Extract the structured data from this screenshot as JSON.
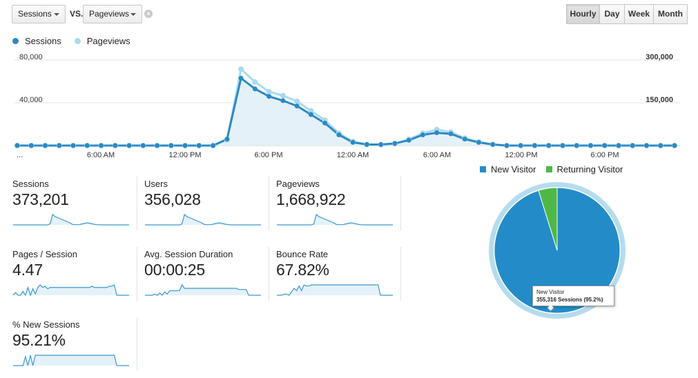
{
  "controls": {
    "primary_metric": "Sessions",
    "vs_label": "VS.",
    "secondary_metric": "Pageviews",
    "clear_glyph": "×",
    "periods": [
      "Hourly",
      "Day",
      "Week",
      "Month"
    ],
    "active_period": "Hourly"
  },
  "colors": {
    "sessions": "#2b8ac4",
    "pageviews": "#a8daf0",
    "area": "#e4f1f8",
    "new_visitor": "#238cc8",
    "returning_visitor": "#4db847"
  },
  "chart_data": [
    {
      "type": "line",
      "series": [
        {
          "name": "Sessions",
          "axis": "left",
          "values": [
            0,
            0,
            0,
            0,
            0,
            0,
            0,
            0,
            0,
            0,
            0,
            0,
            0,
            0,
            0,
            6000,
            63000,
            53000,
            46000,
            42000,
            37000,
            29000,
            21000,
            10000,
            3000,
            1000,
            1000,
            2000,
            5000,
            10000,
            12000,
            11000,
            6000,
            3000,
            1000,
            0,
            0,
            0,
            0,
            0,
            0,
            0,
            0,
            0,
            0,
            0,
            0,
            0
          ]
        },
        {
          "name": "Pageviews",
          "axis": "right",
          "values": [
            0,
            0,
            0,
            0,
            0,
            0,
            0,
            0,
            0,
            0,
            0,
            0,
            0,
            0,
            0,
            20000,
            268000,
            223000,
            189000,
            175000,
            155000,
            122000,
            89000,
            43000,
            14000,
            4000,
            3000,
            6000,
            22000,
            43000,
            56000,
            47000,
            26000,
            12000,
            4000,
            0,
            0,
            0,
            0,
            0,
            0,
            0,
            0,
            0,
            0,
            0,
            0,
            0
          ]
        }
      ],
      "x_tick_labels": [
        "...",
        "6:00 AM",
        "12:00 PM",
        "6:00 PM",
        "12:00 AM",
        "6:00 AM",
        "12:00 PM",
        "6:00 PM"
      ],
      "y_left_ticks": [
        "80,000",
        "40,000"
      ],
      "y_right_ticks": [
        "300,000",
        "150,000"
      ],
      "ylim_left": [
        0,
        80000
      ],
      "ylim_right": [
        0,
        300000
      ]
    },
    {
      "type": "pie",
      "legend": [
        "New Visitor",
        "Returning Visitor"
      ],
      "slices": [
        {
          "label": "New Visitor",
          "value": 95.2
        },
        {
          "label": "Returning Visitor",
          "value": 4.8
        }
      ],
      "tooltip": {
        "title": "New Visitor",
        "value": "355,316 Sessions (95.2%)"
      }
    }
  ],
  "metrics": [
    {
      "label": "Sessions",
      "value": "373,201",
      "spark": [
        0,
        0,
        0,
        0,
        0,
        0,
        0,
        0,
        0,
        0,
        0,
        0,
        0,
        0,
        0,
        1,
        10,
        8,
        7,
        6,
        5,
        4,
        3,
        2,
        0.5,
        0.2,
        0.2,
        0.3,
        1,
        1.5,
        2,
        1.6,
        1,
        0.5,
        0.2,
        0,
        0,
        0,
        0,
        0,
        0,
        0,
        0,
        0,
        0,
        0,
        0,
        0
      ]
    },
    {
      "label": "Users",
      "value": "356,028",
      "spark": [
        0,
        0,
        0,
        0,
        0,
        0,
        0,
        0,
        0,
        0,
        0,
        0,
        0,
        0,
        0,
        1,
        10,
        8,
        7,
        6,
        5,
        4,
        3,
        2,
        0.5,
        0.2,
        0.2,
        0.3,
        1,
        1.5,
        2,
        1.6,
        1,
        0.5,
        0.2,
        0,
        0,
        0,
        0,
        0,
        0,
        0,
        0,
        0,
        0,
        0,
        0,
        0
      ]
    },
    {
      "label": "Pageviews",
      "value": "1,668,922",
      "spark": [
        0,
        0,
        0,
        0,
        0,
        0,
        0,
        0,
        0,
        0,
        0,
        0,
        0,
        0,
        0,
        1,
        10,
        8,
        7,
        6,
        5,
        4,
        3,
        2,
        0.5,
        0.2,
        0.2,
        0.3,
        1,
        1.5,
        2,
        1.6,
        1,
        0.5,
        0.2,
        0,
        0,
        0,
        0,
        0,
        0,
        0,
        0,
        0,
        0,
        0,
        0,
        0
      ]
    },
    {
      "label": "Pages / Session",
      "value": "4.47",
      "spark": [
        0,
        2,
        0,
        0,
        3,
        0,
        6,
        0,
        5,
        1,
        6,
        8,
        6,
        7,
        5,
        6,
        6,
        6,
        6,
        6,
        6,
        6,
        6,
        6,
        6,
        6,
        6,
        6,
        6,
        6,
        6,
        6,
        7,
        6,
        6,
        6,
        6,
        6,
        6,
        7,
        7,
        8,
        0,
        0,
        0,
        0,
        0,
        0
      ]
    },
    {
      "label": "Avg. Session Duration",
      "value": "00:00:25",
      "spark": [
        0,
        0,
        0,
        0,
        1,
        0,
        2,
        0,
        3,
        1,
        4,
        4,
        4,
        4,
        4,
        9,
        6,
        6,
        6,
        6,
        6,
        6,
        6,
        6,
        6,
        6,
        6,
        6,
        6,
        6,
        6,
        6,
        6,
        6,
        6,
        6,
        6,
        6,
        5,
        5,
        5,
        5,
        0,
        0,
        0,
        0,
        0,
        0
      ]
    },
    {
      "label": "Bounce Rate",
      "value": "67.82%",
      "spark": [
        0,
        0,
        0,
        1,
        1,
        0,
        3,
        6,
        4,
        8,
        4,
        9,
        8,
        8,
        9,
        9,
        9,
        9,
        9,
        9,
        9,
        9,
        9,
        9,
        9,
        9,
        9,
        9,
        9,
        9,
        9,
        9,
        9,
        9,
        9,
        9,
        9,
        9,
        9,
        9,
        9,
        9,
        0,
        0,
        0,
        0,
        0,
        0
      ]
    },
    {
      "label": "% New Sessions",
      "value": "95.21%",
      "spark": [
        0,
        0,
        0,
        0,
        0,
        7,
        0,
        8,
        0,
        8,
        8,
        8,
        8,
        8,
        8,
        8,
        8,
        8,
        8,
        8,
        8,
        8,
        8,
        8,
        8,
        8,
        8,
        8,
        8,
        8,
        8,
        8,
        8,
        8,
        8,
        8,
        8,
        8,
        8,
        8,
        8,
        8,
        0,
        0,
        0,
        0,
        0,
        0
      ]
    }
  ]
}
